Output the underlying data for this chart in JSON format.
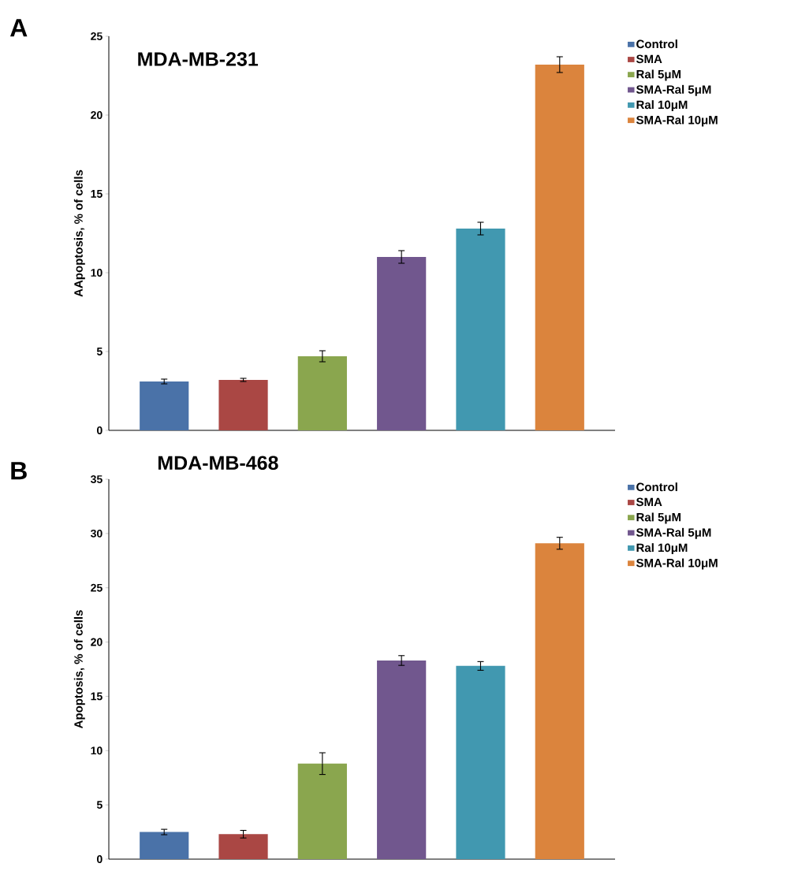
{
  "chart_data": [
    {
      "type": "bar",
      "title": "MDA-MB-231",
      "ylabel": "AApoptosis, % of cells",
      "annotations": [
        "A"
      ],
      "categories": [
        null,
        null,
        null,
        null,
        null,
        null
      ],
      "series": [
        {
          "name": "Control",
          "color": "#4a72a8",
          "values": [
            3.1,
            null,
            null,
            null,
            null,
            null
          ],
          "errors": [
            0.15,
            null,
            null,
            null,
            null,
            null
          ]
        },
        {
          "name": "SMA",
          "color": "#aa4744",
          "values": [
            null,
            3.2,
            null,
            null,
            null,
            null
          ],
          "errors": [
            null,
            0.1,
            null,
            null,
            null,
            null
          ]
        },
        {
          "name": "Ral 5μM",
          "color": "#8aa64e",
          "values": [
            null,
            null,
            4.7,
            null,
            null,
            null
          ],
          "errors": [
            null,
            null,
            0.35,
            null,
            null,
            null
          ]
        },
        {
          "name": "SMA-Ral 5μM",
          "color": "#71578e",
          "values": [
            null,
            null,
            null,
            11.0,
            null,
            null
          ],
          "errors": [
            null,
            null,
            null,
            0.4,
            null,
            null
          ]
        },
        {
          "name": "Ral 10μM",
          "color": "#4198b0",
          "values": [
            null,
            null,
            null,
            null,
            12.8,
            null
          ],
          "errors": [
            null,
            null,
            null,
            null,
            0.4,
            null
          ]
        },
        {
          "name": "SMA-Ral 10μM",
          "color": "#db843d",
          "values": [
            null,
            null,
            null,
            null,
            null,
            23.2
          ],
          "errors": [
            null,
            null,
            null,
            null,
            null,
            0.5
          ]
        }
      ],
      "ylim": [
        0,
        25
      ],
      "yticks": [
        0,
        5,
        10,
        15,
        20,
        25
      ],
      "legend": "top right"
    },
    {
      "type": "bar",
      "title": "MDA-MB-468",
      "ylabel": "Apoptosis, % of cells",
      "annotations": [
        "B"
      ],
      "categories": [
        null,
        null,
        null,
        null,
        null,
        null
      ],
      "series": [
        {
          "name": "Control",
          "color": "#4a72a8",
          "values": [
            2.5,
            null,
            null,
            null,
            null,
            null
          ],
          "errors": [
            0.25,
            null,
            null,
            null,
            null,
            null
          ]
        },
        {
          "name": "SMA",
          "color": "#aa4744",
          "values": [
            null,
            2.3,
            null,
            null,
            null,
            null
          ],
          "errors": [
            null,
            0.35,
            null,
            null,
            null,
            null
          ]
        },
        {
          "name": "Ral 5μM",
          "color": "#8aa64e",
          "values": [
            null,
            null,
            8.8,
            null,
            null,
            null
          ],
          "errors": [
            null,
            null,
            1.0,
            null,
            null,
            null
          ]
        },
        {
          "name": "SMA-Ral 5μM",
          "color": "#71578e",
          "values": [
            null,
            null,
            null,
            18.3,
            null,
            null
          ],
          "errors": [
            null,
            null,
            null,
            0.45,
            null,
            null
          ]
        },
        {
          "name": "Ral 10μM",
          "color": "#4198b0",
          "values": [
            null,
            null,
            null,
            null,
            17.8,
            null
          ],
          "errors": [
            null,
            null,
            null,
            null,
            0.4,
            null
          ]
        },
        {
          "name": "SMA-Ral 10μM",
          "color": "#db843d",
          "values": [
            null,
            null,
            null,
            null,
            null,
            29.1
          ],
          "errors": [
            null,
            null,
            null,
            null,
            null,
            0.55
          ]
        }
      ],
      "ylim": [
        0,
        35
      ],
      "yticks": [
        0,
        5,
        10,
        15,
        20,
        25,
        30,
        35
      ],
      "legend": "top right"
    }
  ]
}
